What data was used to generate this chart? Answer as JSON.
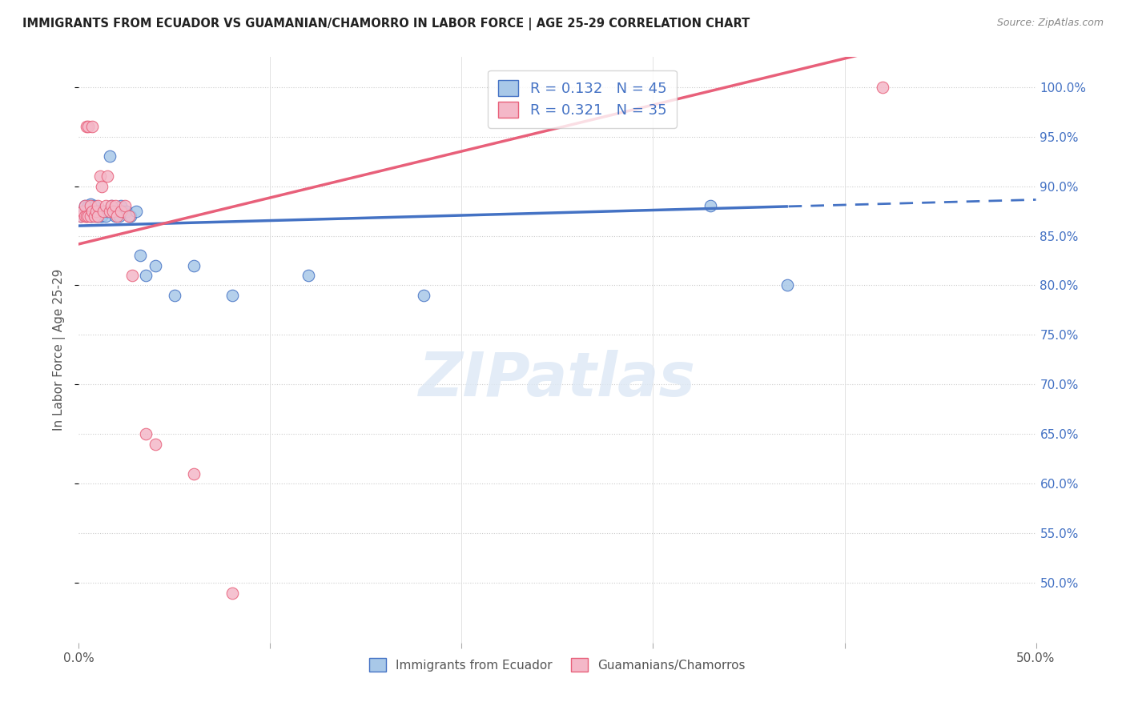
{
  "title": "IMMIGRANTS FROM ECUADOR VS GUAMANIAN/CHAMORRO IN LABOR FORCE | AGE 25-29 CORRELATION CHART",
  "source": "Source: ZipAtlas.com",
  "ylabel": "In Labor Force | Age 25-29",
  "xlim": [
    0.0,
    0.5
  ],
  "ylim": [
    0.44,
    1.03
  ],
  "x_ticks": [
    0.0,
    0.1,
    0.2,
    0.3,
    0.4,
    0.5
  ],
  "x_tick_labels_show": [
    "0.0%",
    "50.0%"
  ],
  "y_ticks": [
    0.5,
    0.55,
    0.6,
    0.65,
    0.7,
    0.75,
    0.8,
    0.85,
    0.9,
    0.95,
    1.0
  ],
  "y_tick_labels": [
    "50.0%",
    "55.0%",
    "60.0%",
    "65.0%",
    "70.0%",
    "75.0%",
    "80.0%",
    "85.0%",
    "90.0%",
    "95.0%",
    "100.0%"
  ],
  "ecuador_color": "#a8c8e8",
  "guamanian_color": "#f4b8c8",
  "trend_ecuador_color": "#4472c4",
  "trend_guamanian_color": "#e8607a",
  "ecuador_R": 0.132,
  "ecuador_N": 45,
  "guamanian_R": 0.321,
  "guamanian_N": 35,
  "watermark": "ZIPatlas",
  "ecuador_x": [
    0.001,
    0.002,
    0.003,
    0.004,
    0.004,
    0.005,
    0.005,
    0.006,
    0.006,
    0.007,
    0.007,
    0.008,
    0.008,
    0.009,
    0.009,
    0.01,
    0.01,
    0.011,
    0.011,
    0.012,
    0.012,
    0.013,
    0.014,
    0.015,
    0.016,
    0.017,
    0.018,
    0.019,
    0.02,
    0.021,
    0.022,
    0.023,
    0.025,
    0.027,
    0.03,
    0.032,
    0.035,
    0.04,
    0.05,
    0.06,
    0.08,
    0.12,
    0.18,
    0.33,
    0.37
  ],
  "ecuador_y": [
    0.87,
    0.875,
    0.88,
    0.87,
    0.875,
    0.875,
    0.88,
    0.87,
    0.882,
    0.87,
    0.875,
    0.875,
    0.88,
    0.87,
    0.875,
    0.87,
    0.875,
    0.87,
    0.875,
    0.87,
    0.875,
    0.875,
    0.87,
    0.875,
    0.93,
    0.88,
    0.875,
    0.87,
    0.875,
    0.87,
    0.88,
    0.875,
    0.875,
    0.87,
    0.875,
    0.83,
    0.81,
    0.82,
    0.79,
    0.82,
    0.79,
    0.81,
    0.79,
    0.88,
    0.8
  ],
  "guamanian_x": [
    0.001,
    0.002,
    0.003,
    0.003,
    0.004,
    0.004,
    0.005,
    0.005,
    0.006,
    0.006,
    0.007,
    0.007,
    0.008,
    0.009,
    0.01,
    0.01,
    0.011,
    0.012,
    0.013,
    0.014,
    0.015,
    0.016,
    0.017,
    0.018,
    0.019,
    0.02,
    0.022,
    0.024,
    0.026,
    0.028,
    0.035,
    0.04,
    0.06,
    0.08,
    0.42
  ],
  "guamanian_y": [
    0.87,
    0.875,
    0.87,
    0.88,
    0.87,
    0.96,
    0.87,
    0.96,
    0.87,
    0.88,
    0.875,
    0.96,
    0.87,
    0.875,
    0.87,
    0.88,
    0.91,
    0.9,
    0.875,
    0.88,
    0.91,
    0.875,
    0.88,
    0.875,
    0.88,
    0.87,
    0.875,
    0.88,
    0.87,
    0.81,
    0.65,
    0.64,
    0.61,
    0.49,
    1.0
  ]
}
